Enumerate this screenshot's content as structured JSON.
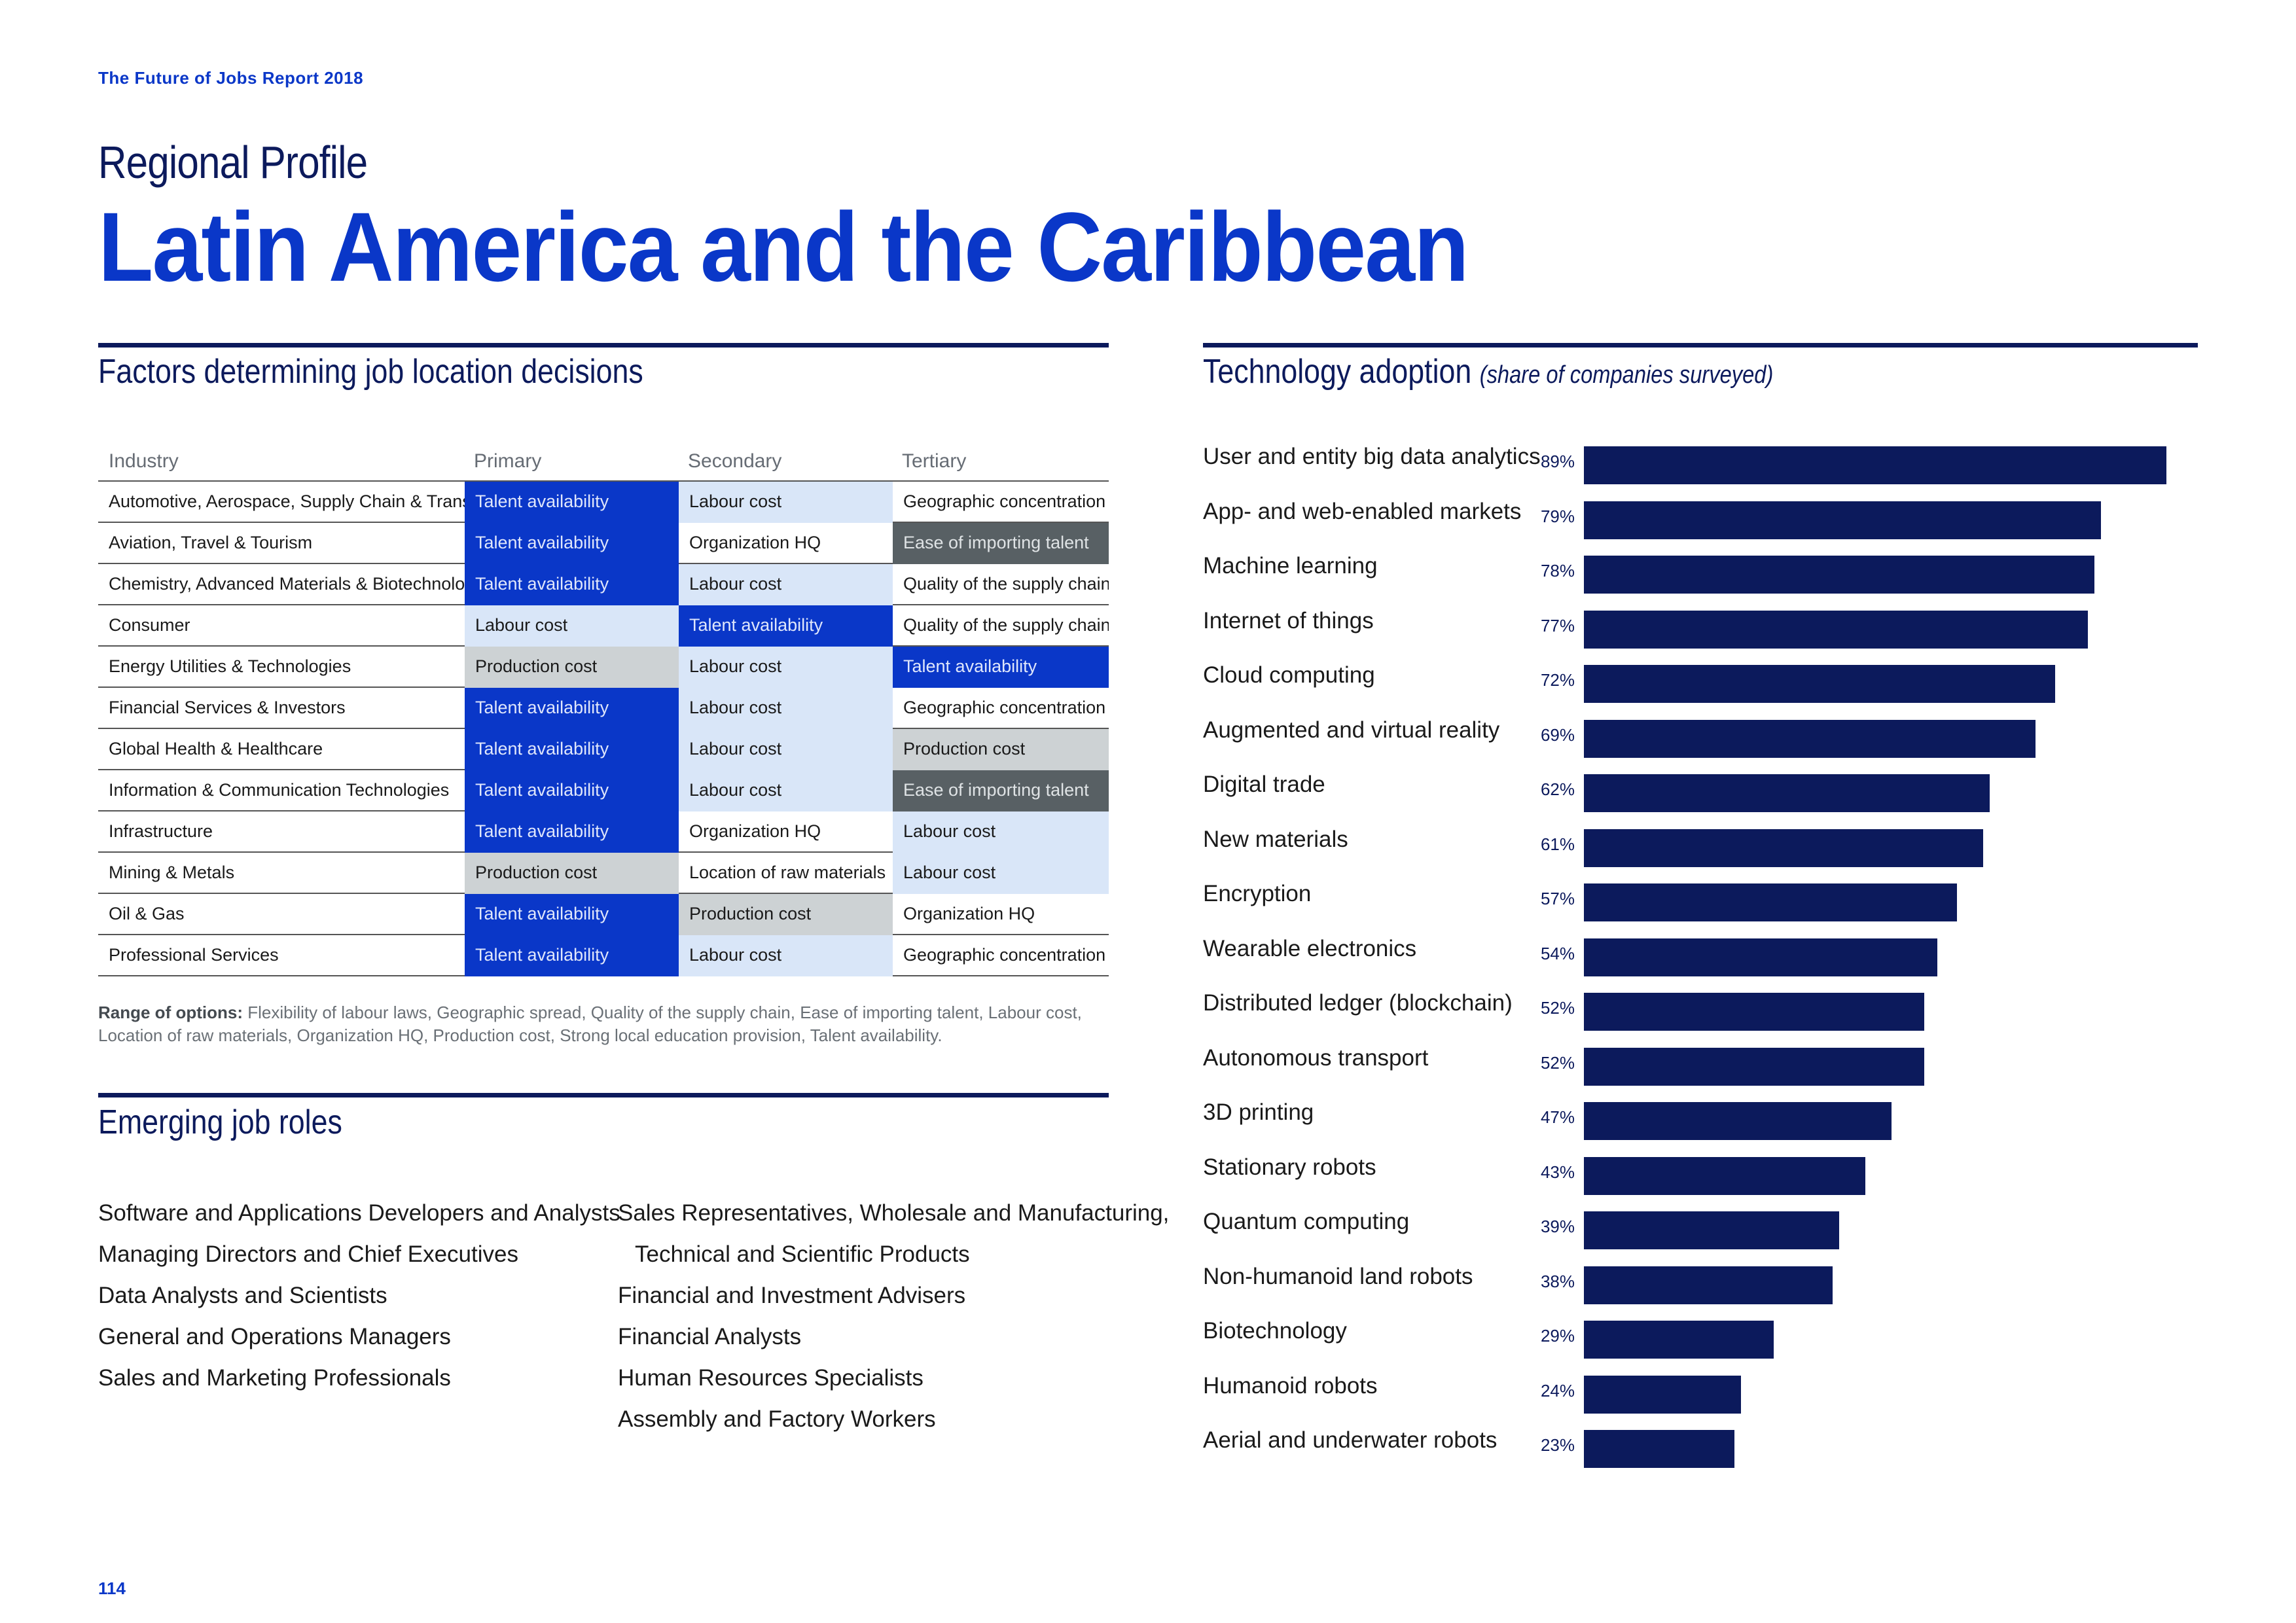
{
  "header": {
    "report_title": "The Future of Jobs Report 2018",
    "subtitle": "Regional Profile",
    "title": "Latin America and the Caribbean"
  },
  "factors": {
    "title": "Factors determining job location decisions",
    "columns": [
      "Industry",
      "Primary",
      "Secondary",
      "Tertiary"
    ],
    "rows": [
      {
        "industry": "Automotive, Aerospace, Supply Chain & Transport",
        "primary": "Talent availability",
        "secondary": "Labour cost",
        "tertiary": "Geographic concentration"
      },
      {
        "industry": "Aviation, Travel & Tourism",
        "primary": "Talent availability",
        "secondary": "Organization HQ",
        "tertiary": "Ease of importing talent"
      },
      {
        "industry": "Chemistry, Advanced Materials & Biotechnology",
        "primary": "Talent availability",
        "secondary": "Labour cost",
        "tertiary": "Quality of the supply chain"
      },
      {
        "industry": "Consumer",
        "primary": "Labour cost",
        "secondary": "Talent availability",
        "tertiary": "Quality of the supply chain"
      },
      {
        "industry": "Energy Utilities & Technologies",
        "primary": "Production cost",
        "secondary": "Labour cost",
        "tertiary": "Talent availability"
      },
      {
        "industry": "Financial Services & Investors",
        "primary": "Talent availability",
        "secondary": "Labour cost",
        "tertiary": "Geographic concentration"
      },
      {
        "industry": "Global Health & Healthcare",
        "primary": "Talent availability",
        "secondary": "Labour cost",
        "tertiary": "Production cost"
      },
      {
        "industry": "Information & Communication Technologies",
        "primary": "Talent availability",
        "secondary": "Labour cost",
        "tertiary": "Ease of importing talent"
      },
      {
        "industry": "Infrastructure",
        "primary": "Talent availability",
        "secondary": "Organization HQ",
        "tertiary": "Labour cost"
      },
      {
        "industry": "Mining & Metals",
        "primary": "Production cost",
        "secondary": "Location of raw materials",
        "tertiary": "Labour cost"
      },
      {
        "industry": "Oil & Gas",
        "primary": "Talent availability",
        "secondary": "Production cost",
        "tertiary": "Organization HQ"
      },
      {
        "industry": "Professional Services",
        "primary": "Talent availability",
        "secondary": "Labour cost",
        "tertiary": "Geographic concentration"
      }
    ],
    "range_label": "Range of options:",
    "range_text": "Flexibility of labour laws, Geographic spread, Quality of the supply chain, Ease of importing talent, Labour cost, Location of raw materials, Organization HQ, Production cost, Strong local education provision, Talent availability.",
    "colors": {
      "talent": "#0a37c8",
      "labour": "#d9e6f8",
      "production": "#cdd2d4",
      "ease": "#586064"
    }
  },
  "roles": {
    "title": "Emerging job roles",
    "left": [
      "Software and Applications Developers and Analysts",
      "Managing Directors and Chief Executives",
      "Data Analysts and Scientists",
      "General and Operations Managers",
      "Sales and Marketing Professionals"
    ],
    "right": [
      "Sales Representatives, Wholesale and Manufacturing,",
      "Technical and Scientific Products",
      "Financial and Investment Advisers",
      "Financial Analysts",
      "Human Resources Specialists",
      "Assembly and Factory Workers"
    ]
  },
  "chart_data": {
    "type": "bar",
    "orientation": "horizontal",
    "title": "Technology adoption",
    "subtitle": "(share of companies surveyed)",
    "unit": "%",
    "xlim": [
      0,
      100
    ],
    "bar_color": "#0c1a5c",
    "categories": [
      "User and entity big data analytics",
      "App- and web-enabled markets",
      "Machine learning",
      "Internet of things",
      "Cloud computing",
      "Augmented and virtual reality",
      "Digital trade",
      "New materials",
      "Encryption",
      "Wearable electronics",
      "Distributed ledger (blockchain)",
      "Autonomous transport",
      "3D printing",
      "Stationary robots",
      "Quantum computing",
      "Non-humanoid land robots",
      "Biotechnology",
      "Humanoid robots",
      "Aerial and underwater robots"
    ],
    "values": [
      89,
      79,
      78,
      77,
      72,
      69,
      62,
      61,
      57,
      54,
      52,
      52,
      47,
      43,
      39,
      38,
      29,
      24,
      23
    ],
    "value_labels": [
      "89%",
      "79%",
      "78%",
      "77%",
      "72%",
      "69%",
      "62%",
      "61%",
      "57%",
      "54%",
      "52%",
      "52%",
      "47%",
      "43%",
      "39%",
      "38%",
      "29%",
      "24%",
      "23%"
    ]
  },
  "footer": {
    "page_number": "114"
  }
}
